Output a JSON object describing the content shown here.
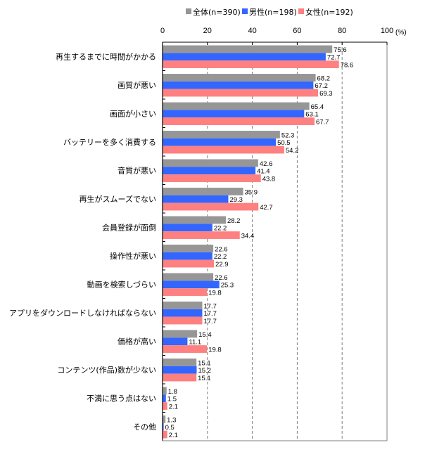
{
  "chart_data": {
    "type": "bar",
    "orientation": "horizontal",
    "title": "",
    "xlabel": "",
    "ylabel": "",
    "unit": "(%)",
    "xlim": [
      0,
      100
    ],
    "xticks": [
      "0",
      "20",
      "40",
      "60",
      "80",
      "100"
    ],
    "grid": true,
    "legend_position": "top",
    "categories": [
      "再生するまでに時間がかかる",
      "画質が悪い",
      "画面が小さい",
      "バッテリーを多く消費する",
      "音質が悪い",
      "再生がスムーズでない",
      "会員登録が面倒",
      "操作性が悪い",
      "動画を検索しづらい",
      "アプリをダウンロードしなければならない",
      "価格が高い",
      "コンテンツ(作品)数が少ない",
      "不満に思う点はない",
      "その他"
    ],
    "series": [
      {
        "name": "全体(n=390)",
        "color": "#969696",
        "values": [
          75.6,
          68.2,
          65.4,
          52.3,
          42.6,
          35.9,
          28.2,
          22.6,
          22.6,
          17.7,
          15.4,
          15.1,
          1.8,
          1.3
        ]
      },
      {
        "name": "男性(n=198)",
        "color": "#3366ff",
        "values": [
          72.7,
          67.2,
          63.1,
          50.5,
          41.4,
          29.3,
          22.2,
          22.2,
          25.3,
          17.7,
          11.1,
          15.2,
          1.5,
          0.5
        ]
      },
      {
        "name": "女性(n=192)",
        "color": "#ff8080",
        "values": [
          78.6,
          69.3,
          67.7,
          54.2,
          43.8,
          42.7,
          34.4,
          22.9,
          19.8,
          17.7,
          19.8,
          15.1,
          2.1,
          2.1
        ]
      }
    ]
  }
}
